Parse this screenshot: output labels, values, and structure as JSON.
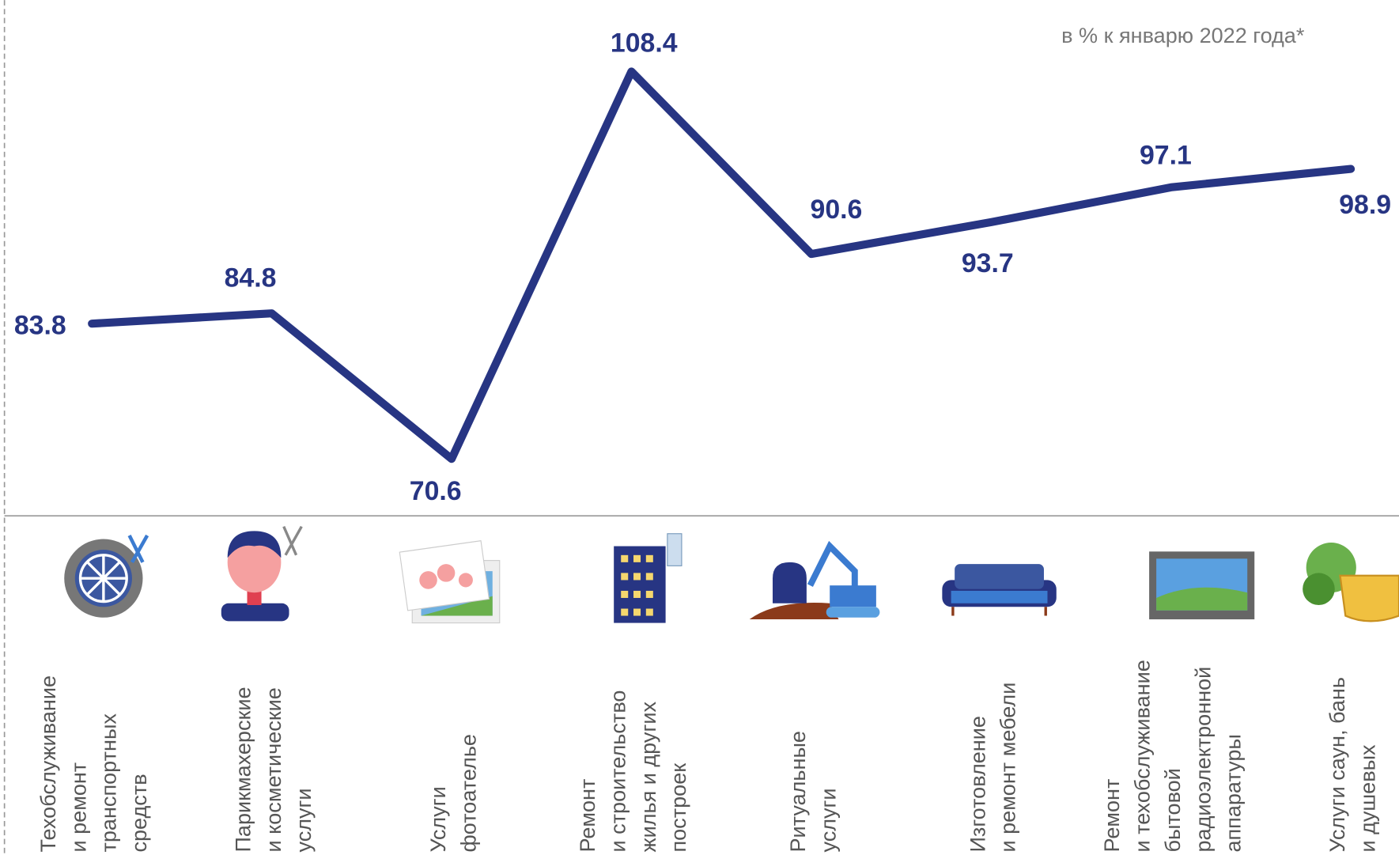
{
  "chart_data": {
    "type": "line",
    "subtitle": "в % к январю 2022 года*",
    "categories": [
      [
        "Техобслуживание",
        "и ремонт",
        "транспортных",
        "средств"
      ],
      [
        "Парикмахерские",
        "и косметические",
        "услуги"
      ],
      [
        "Услуги",
        "фотоателье"
      ],
      [
        "Ремонт",
        "и строительство",
        "жилья и других",
        "построек"
      ],
      [
        "Ритуальные",
        "услуги"
      ],
      [
        "Изготовление",
        "и ремонт мебели"
      ],
      [
        "Ремонт",
        "и техобслуживание",
        "бытовой",
        "радиоэлектронной",
        "аппаратуры"
      ],
      [
        "Услуги саун, бань",
        "и душевых"
      ]
    ],
    "series": [
      {
        "color": "#273583",
        "values": [
          83.8,
          84.8,
          70.6,
          108.4,
          90.6,
          93.7,
          97.1,
          98.9
        ]
      }
    ],
    "ylim": [
      65,
      110
    ]
  }
}
